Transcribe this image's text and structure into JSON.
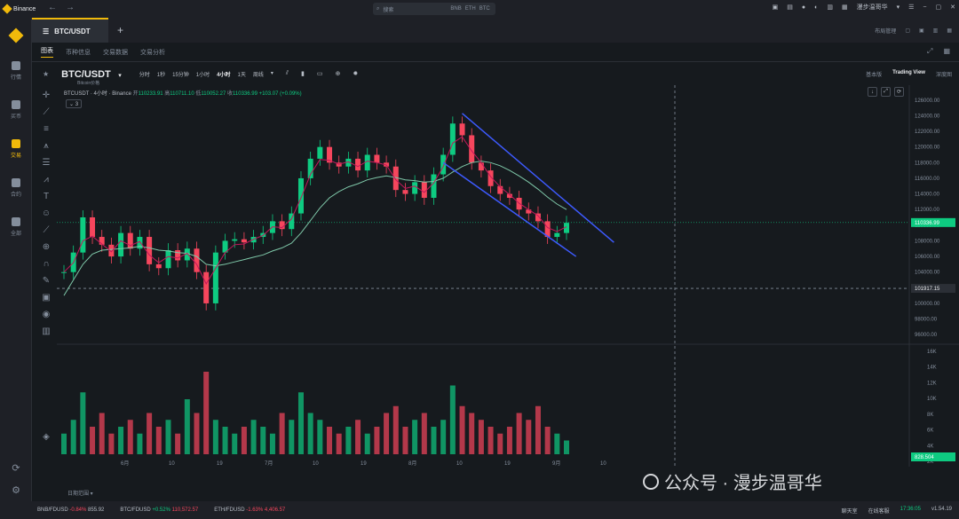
{
  "colors": {
    "accent": "#f0b90b",
    "up": "#0ecb81",
    "down": "#f6465d",
    "channel": "#3d5afe",
    "ma_fast": "#c2185b",
    "ma_slow": "#7fc8a9"
  },
  "titlebar": {
    "app_name": "Binance",
    "search_placeholder": "搜索",
    "search_tags": [
      "BNB",
      "ETH",
      "BTC"
    ],
    "user": "漫步温哥华"
  },
  "sidebar": {
    "items": [
      {
        "label": "行情",
        "icon": "bar-chart-icon"
      },
      {
        "label": "买币",
        "icon": "coin-icon"
      },
      {
        "label": "交易",
        "icon": "trade-icon"
      },
      {
        "label": "合约",
        "icon": "futures-icon"
      },
      {
        "label": "全部",
        "icon": "grid-icon"
      }
    ],
    "active": "交易"
  },
  "tabs": {
    "active": "BTC/USDT",
    "add": "+",
    "layout": "布局管理"
  },
  "subtabs": [
    "图表",
    "币种信息",
    "交易数据",
    "交易分析"
  ],
  "chart_header": {
    "symbol": "BTC/USDT",
    "symbol_sub": "Bitcoin价格",
    "intervals": [
      "分时",
      "1秒",
      "15分钟",
      "1小时",
      "4小时",
      "1天",
      "周线"
    ],
    "active_interval": "4小时",
    "views": [
      "基本版",
      "Trading View",
      "深度图"
    ],
    "active_view": "Trading View"
  },
  "ohlc": {
    "title": "BTCUSDT · 4小时 · Binance",
    "open_label": "开",
    "open": "110233.91",
    "high_label": "高",
    "high": "110711.10",
    "low_label": "低",
    "low": "110052.27",
    "close_label": "收",
    "close": "110336.99",
    "change": "+103.07 (+0.09%)"
  },
  "indicator_toggle": "3",
  "chart_data": {
    "type": "line",
    "price_axis": {
      "ticks": [
        "126000.00",
        "124000.00",
        "122000.00",
        "120000.00",
        "118000.00",
        "116000.00",
        "114000.00",
        "112000.00",
        "110000.00",
        "108000.00",
        "106000.00",
        "104000.00",
        "102000.00",
        "100000.00",
        "98000.00",
        "96000.00"
      ],
      "ylim": [
        95000,
        127000
      ]
    },
    "current_price": "110336.99",
    "crosshair_price": "101917.15",
    "volume_axis": {
      "ticks": [
        "16K",
        "14K",
        "12K",
        "10K",
        "8K",
        "6K",
        "4K",
        "2K"
      ]
    },
    "volume_label": "828.504",
    "x_ticks": [
      "6月",
      "10",
      "19",
      "7月",
      "10",
      "19",
      "8月",
      "10",
      "19",
      "9月",
      "10"
    ],
    "close": [
      104000,
      106500,
      111000,
      108500,
      107500,
      106000,
      109000,
      107000,
      108500,
      105000,
      104500,
      106800,
      105500,
      107000,
      104000,
      100000,
      106500,
      108000,
      108200,
      107800,
      108500,
      109000,
      110500,
      109500,
      111500,
      116000,
      118500,
      120000,
      118000,
      117500,
      118500,
      117000,
      119000,
      118000,
      117500,
      114500,
      114000,
      115500,
      113500,
      116500,
      119000,
      123000,
      121500,
      118000,
      117000,
      115000,
      114000,
      113500,
      112000,
      111500,
      110500,
      108500,
      109000,
      110300
    ],
    "ma_fast": [
      104000,
      105200,
      108000,
      108600,
      107600,
      106600,
      108000,
      107400,
      107900,
      106200,
      105200,
      106000,
      105800,
      106400,
      105000,
      102500,
      104500,
      106500,
      107500,
      107600,
      108200,
      108700,
      109800,
      109700,
      110800,
      113500,
      116500,
      118400,
      118300,
      117800,
      118100,
      117500,
      118200,
      118000,
      117700,
      115800,
      114700,
      115000,
      114200,
      115400,
      117500,
      120500,
      121300,
      119500,
      118000,
      116200,
      114900,
      113900,
      112800,
      112000,
      111200,
      109700,
      109200,
      109800
    ],
    "ma_slow": [
      101000,
      103000,
      105000,
      106300,
      106800,
      106900,
      107000,
      107100,
      107300,
      107100,
      106800,
      106700,
      106500,
      106400,
      106000,
      105000,
      104800,
      105000,
      105300,
      105600,
      105900,
      106200,
      106700,
      107100,
      107700,
      109000,
      110600,
      112200,
      113500,
      114300,
      114900,
      115300,
      115800,
      116100,
      116300,
      116100,
      115800,
      115700,
      115500,
      115600,
      116000,
      116800,
      117500,
      118000,
      118200,
      118000,
      117600,
      117000,
      116300,
      115500,
      114600,
      113600,
      112700,
      112000
    ],
    "channel": {
      "upper": [
        {
          "x": 42,
          "y": 124300
        },
        {
          "x": 58,
          "y": 107800
        }
      ],
      "lower": [
        {
          "x": 40,
          "y": 118000
        },
        {
          "x": 54,
          "y": 106000
        }
      ]
    },
    "volume": [
      3,
      5,
      9,
      4,
      6,
      3,
      4,
      5,
      3,
      6,
      4,
      5,
      3,
      8,
      6,
      12,
      5,
      4,
      3,
      4,
      5,
      4,
      3,
      6,
      5,
      9,
      6,
      5,
      4,
      3,
      4,
      5,
      3,
      4,
      6,
      7,
      4,
      5,
      6,
      4,
      5,
      10,
      7,
      6,
      5,
      4,
      3,
      4,
      6,
      5,
      7,
      4,
      3,
      2
    ],
    "title": "",
    "xlabel": "",
    "ylabel": ""
  },
  "date_range_label": "日期范围",
  "watermark": "公众号 · 漫步温哥华",
  "statusbar": {
    "tickers": [
      {
        "pair": "BNB/FDUSD",
        "change": "-0.84%",
        "price": "855.92",
        "dir": "neg"
      },
      {
        "pair": "BTC/FDUSD",
        "change": "+0.52%",
        "price": "110,572.57",
        "dir": "pos"
      },
      {
        "pair": "ETH/FDUSD",
        "change": "-1.63%",
        "price": "4,406.57",
        "dir": "neg"
      }
    ],
    "chat": "聊天室",
    "online": "在线客服",
    "time": "17:36:05",
    "version": "v1.54.19"
  }
}
